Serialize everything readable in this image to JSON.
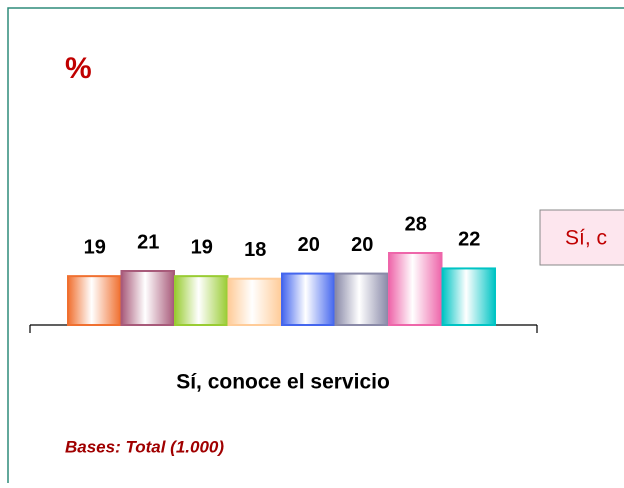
{
  "chart_data": {
    "type": "bar",
    "title": "%",
    "categories": [
      "Sí, conoce el servicio"
    ],
    "series": [
      {
        "color": "#f07030",
        "values": [
          19
        ]
      },
      {
        "color": "#a85a7a",
        "values": [
          21
        ]
      },
      {
        "color": "#99cc33",
        "values": [
          19
        ]
      },
      {
        "color": "#ffcc99",
        "values": [
          18
        ]
      },
      {
        "color": "#4466ee",
        "values": [
          20
        ]
      },
      {
        "color": "#8a8aa8",
        "values": [
          20
        ]
      },
      {
        "color": "#ee66aa",
        "values": [
          28
        ]
      },
      {
        "color": "#00c4c4",
        "values": [
          22
        ]
      }
    ],
    "legend_text": "Sí, c",
    "footnote": "Bases: Total (1.000)"
  }
}
